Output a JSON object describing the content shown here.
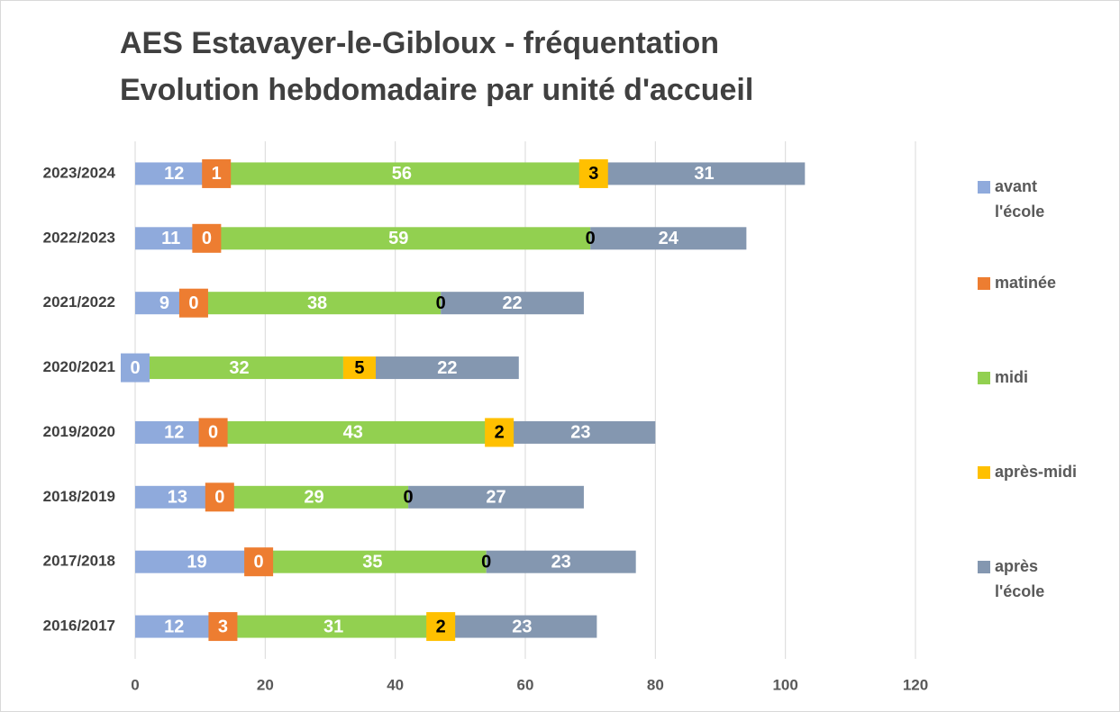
{
  "chart_data": {
    "type": "stacked_bar_horizontal",
    "title": "AES Estavayer-le-Gibloux - fréquentation",
    "subtitle": "Evolution hebdomadaire par unité d'accueil",
    "categories": [
      "2023/2024",
      "2022/2023",
      "2021/2022",
      "2020/2021",
      "2019/2020",
      "2018/2019",
      "2017/2018",
      "2016/2017"
    ],
    "series": [
      {
        "name": "avant l'école",
        "color": "#8faadc",
        "values": [
          12,
          11,
          9,
          0,
          12,
          13,
          19,
          12
        ]
      },
      {
        "name": "matinée",
        "color": "#ed7d31",
        "values": [
          1,
          0,
          0,
          null,
          0,
          0,
          0,
          3
        ]
      },
      {
        "name": "midi",
        "color": "#92d050",
        "values": [
          56,
          59,
          38,
          32,
          43,
          29,
          35,
          31
        ]
      },
      {
        "name": "après-midi",
        "color": "#ffc000",
        "values": [
          3,
          0,
          0,
          5,
          2,
          0,
          0,
          2
        ]
      },
      {
        "name": "après l'école",
        "color": "#8497b0",
        "values": [
          31,
          24,
          22,
          22,
          23,
          27,
          23,
          23
        ]
      }
    ],
    "xlim": [
      0,
      120
    ],
    "xticks": [
      0,
      20,
      40,
      60,
      80,
      100,
      120
    ],
    "grid": true,
    "legend": "right"
  }
}
